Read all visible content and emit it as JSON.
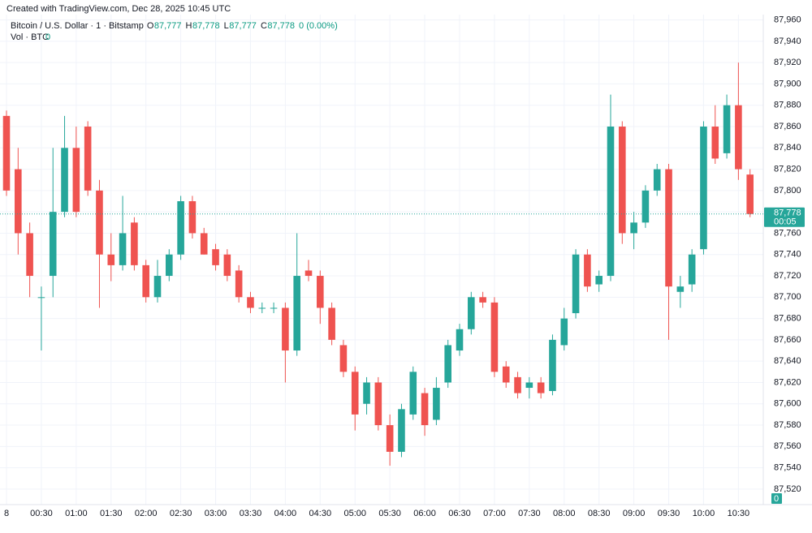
{
  "chart_data": {
    "type": "candlestick",
    "credit": "Created with TradingView.com, Dec 28, 2025 10:45 UTC",
    "symbol": "Bitcoin / U.S. Dollar · 1 · Bitstamp",
    "legend": {
      "o_label": "O",
      "open": "87,777",
      "h_label": "H",
      "high": "87,778",
      "l_label": "L",
      "low": "87,777",
      "c_label": "C",
      "close": "87,778",
      "change": "0 (0.00%)"
    },
    "volume_title": "Vol · BTC",
    "volume_value": "0",
    "up_color": "#26a69a",
    "down_color": "#ef5350",
    "grid": true,
    "xlim": [
      "00:00",
      "10:50"
    ],
    "ylim": [
      87507,
      87965
    ],
    "xticks": [
      {
        "value": "00:00",
        "label": "8"
      },
      "00:30",
      "01:00",
      "01:30",
      "02:00",
      "02:30",
      "03:00",
      "03:30",
      "04:00",
      "04:30",
      "05:00",
      "05:30",
      "06:00",
      "06:30",
      "07:00",
      "07:30",
      "08:00",
      "08:30",
      "09:00",
      "09:30",
      "10:00",
      "10:30"
    ],
    "yticks": [
      {
        "value": 87520,
        "label": "87,520"
      },
      {
        "value": 87540,
        "label": "87,540"
      },
      {
        "value": 87560,
        "label": "87,560"
      },
      {
        "value": 87580,
        "label": "87,580"
      },
      {
        "value": 87600,
        "label": "87,600"
      },
      {
        "value": 87620,
        "label": "87,620"
      },
      {
        "value": 87640,
        "label": "87,640"
      },
      {
        "value": 87660,
        "label": "87,660"
      },
      {
        "value": 87680,
        "label": "87,680"
      },
      {
        "value": 87700,
        "label": "87,700"
      },
      {
        "value": 87720,
        "label": "87,720"
      },
      {
        "value": 87740,
        "label": "87,740"
      },
      {
        "value": 87760,
        "label": "87,760"
      },
      {
        "value": 87780,
        "label": "87,780"
      },
      {
        "value": 87800,
        "label": "87,800"
      },
      {
        "value": 87820,
        "label": "87,820"
      },
      {
        "value": 87840,
        "label": "87,840"
      },
      {
        "value": 87860,
        "label": "87,860"
      },
      {
        "value": 87880,
        "label": "87,880"
      },
      {
        "value": 87900,
        "label": "87,900"
      },
      {
        "value": 87920,
        "label": "87,920"
      },
      {
        "value": 87940,
        "label": "87,940"
      },
      {
        "value": 87960,
        "label": "87,960"
      }
    ],
    "last_price": {
      "value": 87778,
      "label": "87,778"
    },
    "countdown": "00:05",
    "x": [
      "00:00",
      "00:10",
      "00:20",
      "00:30",
      "00:40",
      "00:50",
      "01:00",
      "01:10",
      "01:20",
      "01:30",
      "01:40",
      "01:50",
      "02:00",
      "02:10",
      "02:20",
      "02:30",
      "02:40",
      "02:50",
      "03:00",
      "03:10",
      "03:20",
      "03:30",
      "03:40",
      "03:50",
      "04:00",
      "04:10",
      "04:20",
      "04:30",
      "04:40",
      "04:50",
      "05:00",
      "05:10",
      "05:20",
      "05:30",
      "05:40",
      "05:50",
      "06:00",
      "06:10",
      "06:20",
      "06:30",
      "06:40",
      "06:50",
      "07:00",
      "07:10",
      "07:20",
      "07:30",
      "07:40",
      "07:50",
      "08:00",
      "08:10",
      "08:20",
      "08:30",
      "08:40",
      "08:50",
      "09:00",
      "09:10",
      "09:20",
      "09:30",
      "09:40",
      "09:50",
      "10:00",
      "10:10",
      "10:20",
      "10:30",
      "10:40"
    ],
    "open": [
      87870,
      87820,
      87760,
      87700,
      87720,
      87780,
      87840,
      87860,
      87800,
      87740,
      87730,
      87770,
      87730,
      87700,
      87720,
      87740,
      87790,
      87760,
      87745,
      87740,
      87725,
      87700,
      87690,
      87690,
      87690,
      87650,
      87725,
      87720,
      87690,
      87655,
      87630,
      87600,
      87620,
      87580,
      87555,
      87590,
      87610,
      87585,
      87620,
      87650,
      87670,
      87700,
      87695,
      87635,
      87625,
      87615,
      87620,
      87612,
      87655,
      87685,
      87740,
      87712,
      87720,
      87860,
      87760,
      87770,
      87800,
      87820,
      87705,
      87712,
      87745,
      87860,
      87835,
      87880,
      87815
    ],
    "high": [
      87875,
      87840,
      87770,
      87710,
      87840,
      87870,
      87860,
      87865,
      87810,
      87760,
      87795,
      87775,
      87735,
      87735,
      87745,
      87795,
      87795,
      87765,
      87750,
      87745,
      87730,
      87705,
      87695,
      87695,
      87695,
      87760,
      87735,
      87725,
      87695,
      87660,
      87635,
      87625,
      87625,
      87590,
      87600,
      87635,
      87615,
      87625,
      87660,
      87675,
      87705,
      87705,
      87700,
      87640,
      87630,
      87625,
      87625,
      87665,
      87690,
      87745,
      87745,
      87725,
      87890,
      87865,
      87780,
      87805,
      87825,
      87825,
      87720,
      87745,
      87865,
      87880,
      87890,
      87920,
      87820
    ],
    "low": [
      87795,
      87740,
      87700,
      87650,
      87700,
      87775,
      87775,
      87795,
      87690,
      87715,
      87725,
      87725,
      87695,
      87695,
      87715,
      87735,
      87755,
      87740,
      87725,
      87715,
      87695,
      87685,
      87685,
      87685,
      87620,
      87645,
      87715,
      87675,
      87655,
      87625,
      87575,
      87590,
      87575,
      87542,
      87550,
      87585,
      87570,
      87580,
      87615,
      87645,
      87665,
      87690,
      87625,
      87615,
      87605,
      87605,
      87605,
      87608,
      87650,
      87680,
      87705,
      87705,
      87715,
      87750,
      87745,
      87765,
      87795,
      87660,
      87690,
      87705,
      87740,
      87825,
      87830,
      87810,
      87775
    ],
    "close": [
      87800,
      87760,
      87720,
      87700,
      87780,
      87840,
      87780,
      87800,
      87740,
      87730,
      87760,
      87730,
      87700,
      87720,
      87740,
      87790,
      87760,
      87740,
      87730,
      87720,
      87700,
      87690,
      87690,
      87690,
      87650,
      87720,
      87720,
      87690,
      87660,
      87630,
      87590,
      87620,
      87580,
      87555,
      87595,
      87630,
      87580,
      87615,
      87655,
      87670,
      87700,
      87695,
      87630,
      87620,
      87610,
      87620,
      87610,
      87660,
      87680,
      87740,
      87710,
      87720,
      87860,
      87760,
      87770,
      87800,
      87820,
      87710,
      87710,
      87740,
      87860,
      87830,
      87880,
      87820,
      87778
    ]
  }
}
